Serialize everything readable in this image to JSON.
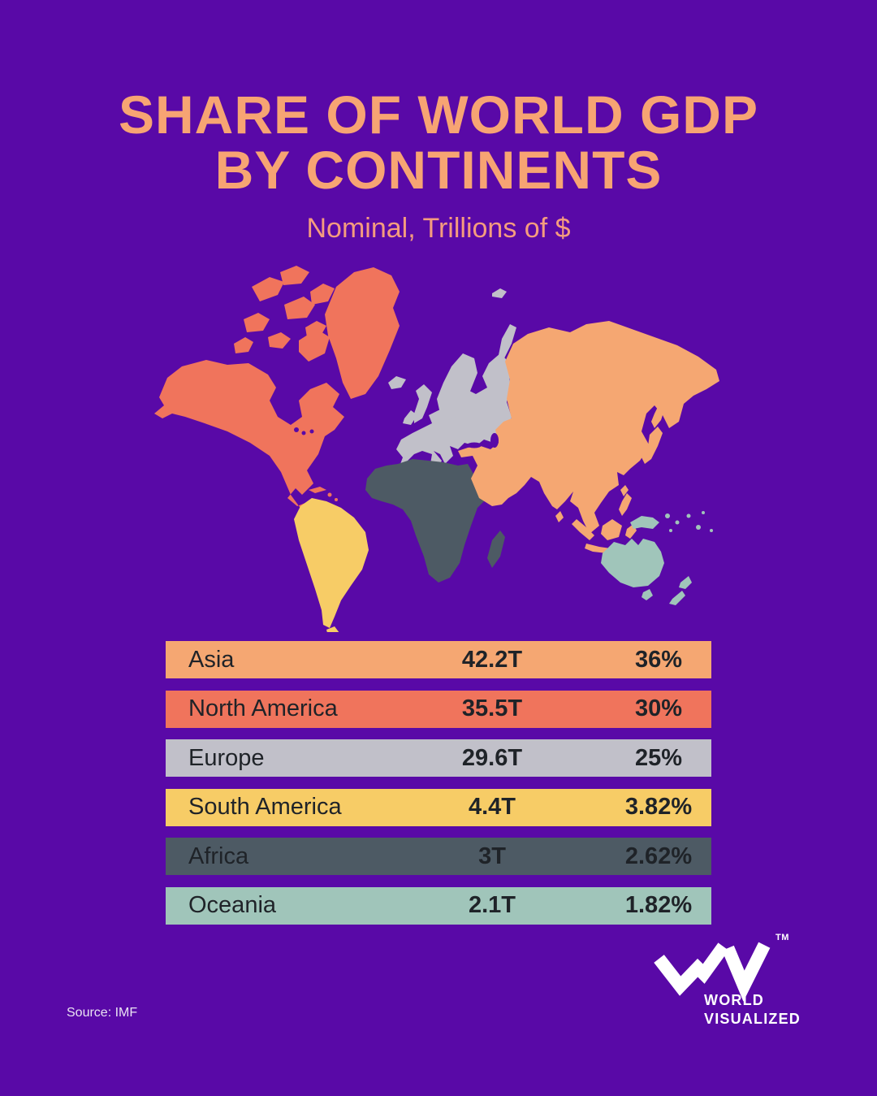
{
  "title": {
    "line1": "SHARE OF WORLD GDP",
    "line2": "BY CONTINENTS",
    "subtitle": "Nominal, Trillions of $"
  },
  "chart_data": {
    "type": "table",
    "title": "Share of World GDP by Continents",
    "subtitle": "Nominal, Trillions of $",
    "unit": "nominal GDP, trillions of US dollars",
    "columns": [
      "continent",
      "gdp_trillions",
      "share_percent"
    ],
    "rows": [
      {
        "continent": "Asia",
        "gdp": "42.2T",
        "share": "36%",
        "gdp_value": 42.2,
        "share_value": 36,
        "color": "#F5A772"
      },
      {
        "continent": "North America",
        "gdp": "35.5T",
        "share": "30%",
        "gdp_value": 35.5,
        "share_value": 30,
        "color": "#F0745C"
      },
      {
        "continent": "Europe",
        "gdp": "29.6T",
        "share": "25%",
        "gdp_value": 29.6,
        "share_value": 25,
        "color": "#C1C0C9"
      },
      {
        "continent": "South America",
        "gdp": "4.4T",
        "share": "3.82%",
        "gdp_value": 4.4,
        "share_value": 3.82,
        "color": "#F7CC66"
      },
      {
        "continent": "Africa",
        "gdp": "3T",
        "share": "2.62%",
        "gdp_value": 3.0,
        "share_value": 2.62,
        "color": "#4D5A64"
      },
      {
        "continent": "Oceania",
        "gdp": "2.1T",
        "share": "1.82%",
        "gdp_value": 2.1,
        "share_value": 1.82,
        "color": "#A0C5BA"
      }
    ],
    "legend_position": "none",
    "grid": false
  },
  "map": {
    "description": "world map colored by continent",
    "ocean_color": "#5909A7"
  },
  "source": "Source: IMF",
  "logo": {
    "tm": "TM",
    "line1": "WORLD",
    "line2": "VISUALIZED"
  },
  "colors": {
    "background": "#5909A7",
    "title": "#F7A473",
    "subtitle": "#F59C7E",
    "row_text": "#1F2328",
    "logo": "#FFFFFF"
  }
}
